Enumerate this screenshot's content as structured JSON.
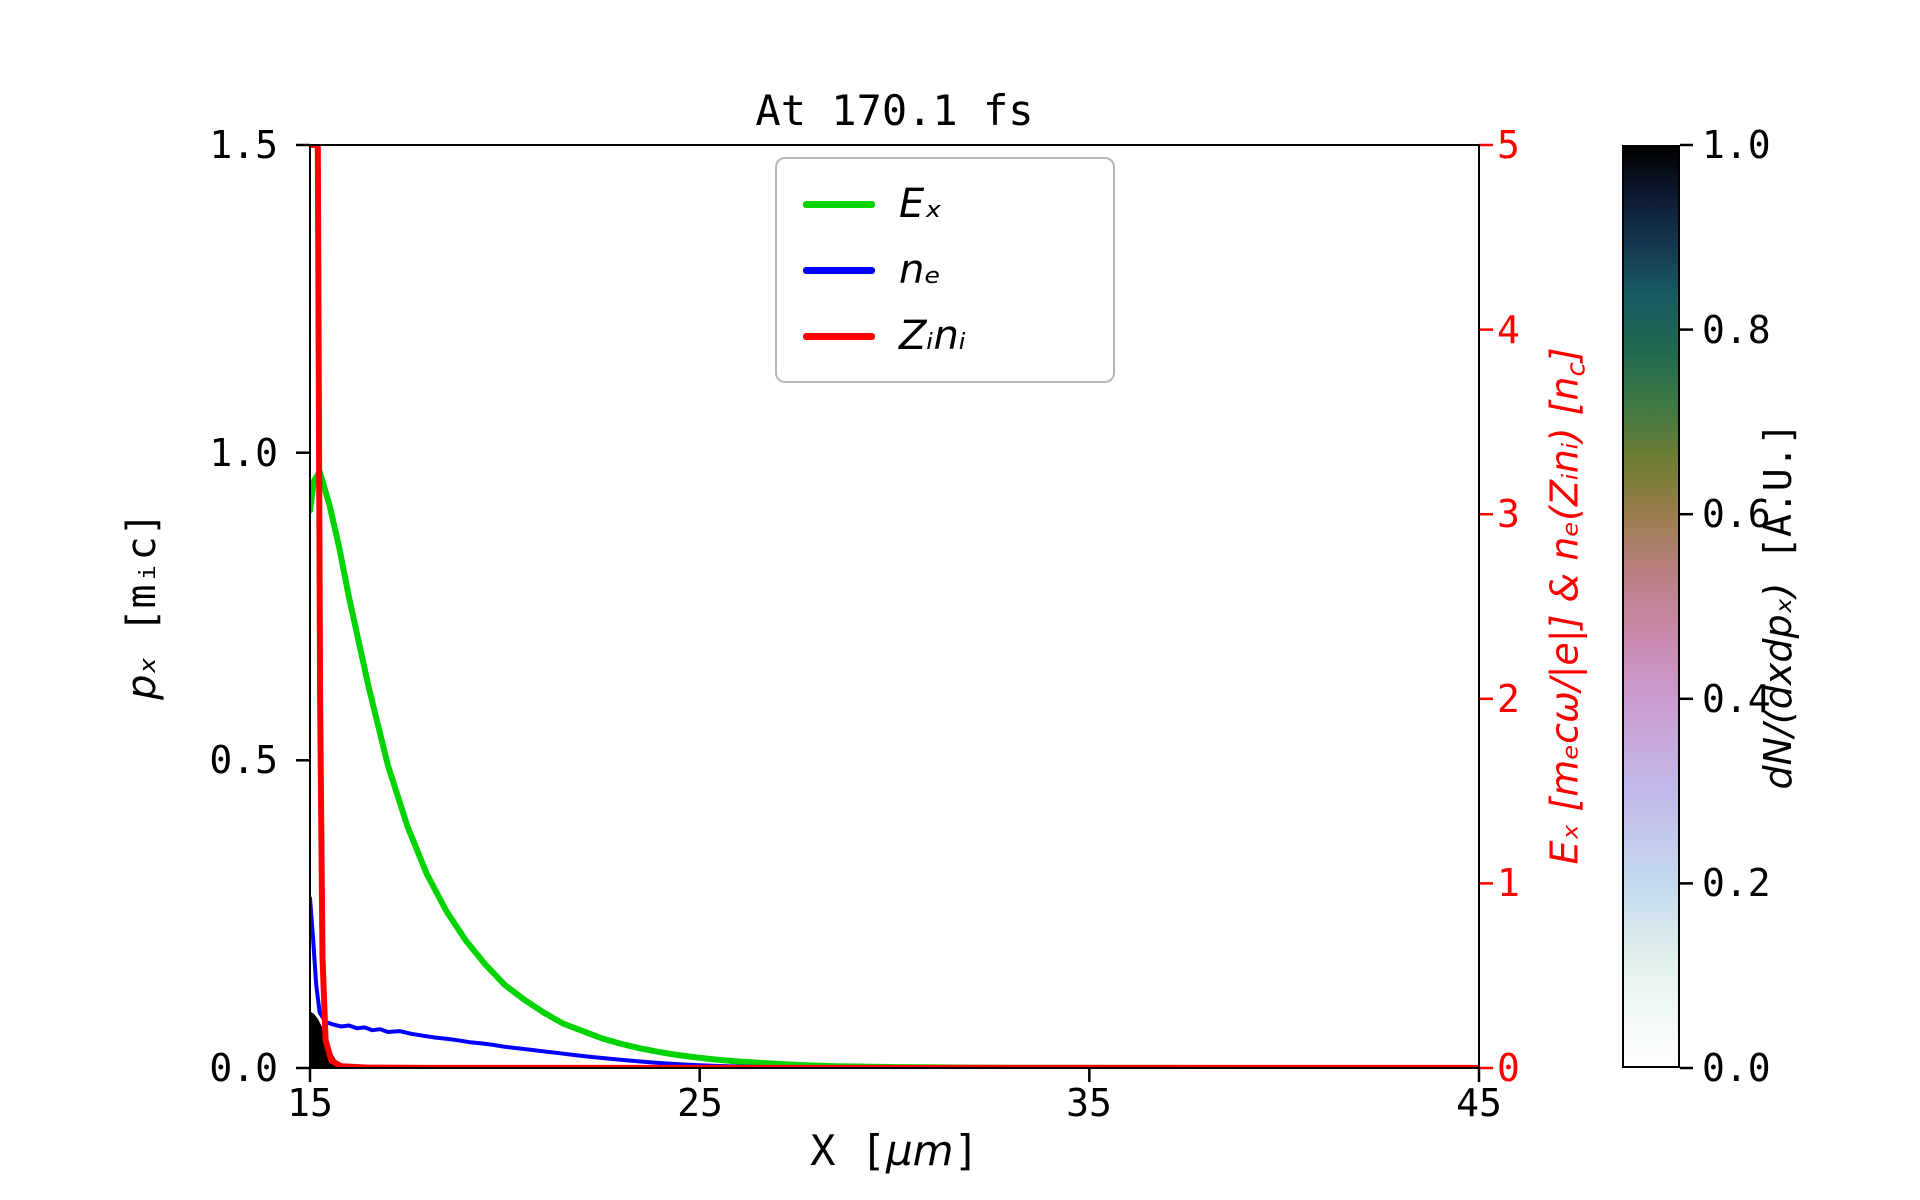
{
  "chart_data": {
    "type": "line",
    "title": "At 170.1 fs",
    "xlabel": "X [μm]",
    "xlabel_parts": {
      "pre": "X [",
      "it": "μm",
      "post": "]"
    },
    "ylabel_left": "pₓ [mᵢc]",
    "ylabel_left_parts": {
      "it": "pₓ",
      "mono": " [mᵢc]"
    },
    "ylabel_right": "Eₓ [mₑcω/|e|] & nₑ(Zᵢnᵢ) [nc]",
    "ylabel_right_parts": {
      "pre": "Eₓ [mₑcω/|e|] & nₑ(Zᵢnᵢ) [n",
      "sub": "c",
      "post": "]"
    },
    "colorbar_label": "dN/(dxdpₓ) [A.U.]",
    "colorbar_label_parts": {
      "it": "dN/(dxdpₓ)",
      "mono": " [A.U.]"
    },
    "xlim": [
      15,
      45
    ],
    "ylim_left": [
      0.0,
      1.5
    ],
    "ylim_right": [
      0,
      5
    ],
    "grid": false,
    "legend_position": "upper center",
    "axis_color_right": "#ff0000",
    "axis_color_left": "#000000",
    "x_ticks": [
      "15",
      "25",
      "35",
      "45"
    ],
    "x_tick_values": [
      15,
      25,
      35,
      45
    ],
    "y_ticks_left": [
      "0.0",
      "0.5",
      "1.0",
      "1.5"
    ],
    "y_tick_left_values": [
      0.0,
      0.5,
      1.0,
      1.5
    ],
    "y_ticks_right": [
      "0",
      "1",
      "2",
      "3",
      "4",
      "5"
    ],
    "y_tick_right_values": [
      0,
      1,
      2,
      3,
      4,
      5
    ],
    "legend": [
      {
        "label": "Eₓ",
        "color": "#00d400"
      },
      {
        "label": "nₑ",
        "color": "#0000ff"
      },
      {
        "label": "Zᵢnᵢ",
        "color": "#ff0000"
      }
    ],
    "series": [
      {
        "name": "Eₓ",
        "color": "#00d400",
        "axis": "right",
        "linewidth": 6,
        "points": [
          [
            15.0,
            3.02
          ],
          [
            15.1,
            3.18
          ],
          [
            15.25,
            3.23
          ],
          [
            15.5,
            3.05
          ],
          [
            15.75,
            2.82
          ],
          [
            16.0,
            2.55
          ],
          [
            16.5,
            2.07
          ],
          [
            17.0,
            1.64
          ],
          [
            17.5,
            1.31
          ],
          [
            18.0,
            1.05
          ],
          [
            18.5,
            0.85
          ],
          [
            19.0,
            0.69
          ],
          [
            19.5,
            0.56
          ],
          [
            20.0,
            0.45
          ],
          [
            20.5,
            0.37
          ],
          [
            21.0,
            0.3
          ],
          [
            21.5,
            0.24
          ],
          [
            22.0,
            0.2
          ],
          [
            22.5,
            0.16
          ],
          [
            23.0,
            0.13
          ],
          [
            23.5,
            0.105
          ],
          [
            24.0,
            0.085
          ],
          [
            24.5,
            0.068
          ],
          [
            25.0,
            0.055
          ],
          [
            25.5,
            0.044
          ],
          [
            26.0,
            0.035
          ],
          [
            26.5,
            0.028
          ],
          [
            27.0,
            0.022
          ],
          [
            27.5,
            0.017
          ],
          [
            28.0,
            0.013
          ],
          [
            28.5,
            0.01
          ],
          [
            29.0,
            0.008
          ],
          [
            30.0,
            0.005
          ],
          [
            31.0,
            0.003
          ],
          [
            32.0,
            0.002
          ],
          [
            34.0,
            0.001
          ],
          [
            36.0,
            0.0005
          ],
          [
            40.0,
            0.0002
          ],
          [
            45.0,
            0.0001
          ]
        ]
      },
      {
        "name": "nₑ",
        "color": "#0000ff",
        "axis": "right",
        "linewidth": 4,
        "points": [
          [
            15.0,
            0.92
          ],
          [
            15.08,
            0.7
          ],
          [
            15.16,
            0.45
          ],
          [
            15.25,
            0.3
          ],
          [
            15.4,
            0.25
          ],
          [
            15.6,
            0.235
          ],
          [
            15.8,
            0.225
          ],
          [
            16.0,
            0.23
          ],
          [
            16.2,
            0.215
          ],
          [
            16.4,
            0.22
          ],
          [
            16.6,
            0.205
          ],
          [
            16.8,
            0.21
          ],
          [
            17.0,
            0.195
          ],
          [
            17.3,
            0.2
          ],
          [
            17.6,
            0.185
          ],
          [
            17.9,
            0.175
          ],
          [
            18.2,
            0.165
          ],
          [
            18.5,
            0.158
          ],
          [
            18.8,
            0.15
          ],
          [
            19.1,
            0.14
          ],
          [
            19.4,
            0.133
          ],
          [
            19.7,
            0.125
          ],
          [
            20.0,
            0.115
          ],
          [
            20.3,
            0.108
          ],
          [
            20.6,
            0.1
          ],
          [
            21.0,
            0.09
          ],
          [
            21.4,
            0.08
          ],
          [
            21.8,
            0.07
          ],
          [
            22.2,
            0.06
          ],
          [
            22.6,
            0.052
          ],
          [
            23.0,
            0.044
          ],
          [
            23.4,
            0.037
          ],
          [
            23.8,
            0.03
          ],
          [
            24.2,
            0.024
          ],
          [
            24.6,
            0.019
          ],
          [
            25.0,
            0.015
          ],
          [
            25.5,
            0.011
          ],
          [
            26.0,
            0.008
          ],
          [
            26.5,
            0.006
          ],
          [
            27.0,
            0.004
          ],
          [
            28.0,
            0.002
          ],
          [
            29.0,
            0.001
          ],
          [
            30.0,
            0.0005
          ],
          [
            35.0,
            0.0002
          ],
          [
            45.0,
            0.0001
          ]
        ]
      },
      {
        "name": "Zᵢnᵢ",
        "color": "#ff0000",
        "axis": "right",
        "linewidth": 6,
        "points": [
          [
            15.0,
            5.0
          ],
          [
            15.2,
            5.0
          ],
          [
            15.26,
            2.0
          ],
          [
            15.32,
            0.6
          ],
          [
            15.4,
            0.15
          ],
          [
            15.55,
            0.04
          ],
          [
            15.8,
            0.01
          ],
          [
            16.5,
            0.002
          ],
          [
            18.0,
            0.0005
          ],
          [
            45.0,
            0.0003
          ]
        ]
      }
    ],
    "phase_space": {
      "name": "dN/(dxdpₓ)",
      "color": "#000000",
      "axis": "left",
      "x": [
        15.0,
        15.1,
        15.2,
        15.3,
        15.4,
        15.5,
        15.6,
        15.7,
        15.8,
        15.8,
        15.0
      ],
      "px": [
        0.092,
        0.088,
        0.08,
        0.068,
        0.052,
        0.035,
        0.02,
        0.009,
        0.002,
        0.0,
        0.0
      ]
    },
    "colorbar": {
      "range": [
        0.0,
        1.0
      ],
      "ticks": [
        "0.0",
        "0.2",
        "0.4",
        "0.6",
        "0.8",
        "1.0"
      ],
      "tick_values": [
        0.0,
        0.2,
        0.4,
        0.6,
        0.8,
        1.0
      ],
      "gradient": [
        {
          "v": 0.0,
          "c": "#ffffff"
        },
        {
          "v": 0.1,
          "c": "#e6f3ec"
        },
        {
          "v": 0.2,
          "c": "#c3d9ee"
        },
        {
          "v": 0.3,
          "c": "#c2b8ea"
        },
        {
          "v": 0.4,
          "c": "#cb9bd0"
        },
        {
          "v": 0.47,
          "c": "#c988ab"
        },
        {
          "v": 0.54,
          "c": "#b87f7f"
        },
        {
          "v": 0.6,
          "c": "#9a7d4d"
        },
        {
          "v": 0.66,
          "c": "#6f7d33"
        },
        {
          "v": 0.72,
          "c": "#3f7a44"
        },
        {
          "v": 0.78,
          "c": "#20684f"
        },
        {
          "v": 0.84,
          "c": "#175a62"
        },
        {
          "v": 0.9,
          "c": "#14344d"
        },
        {
          "v": 0.95,
          "c": "#0c1830"
        },
        {
          "v": 1.0,
          "c": "#000000"
        }
      ]
    }
  }
}
